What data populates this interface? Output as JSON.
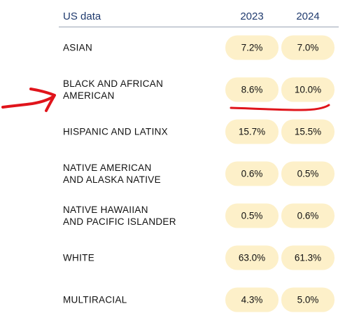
{
  "header": {
    "title": "US data",
    "year1": "2023",
    "year2": "2024"
  },
  "rows": [
    {
      "label_line1": "ASIAN",
      "label_line2": "",
      "v2023": "7.2%",
      "v2024": "7.0%"
    },
    {
      "label_line1": "BLACK AND AFRICAN",
      "label_line2": "AMERICAN",
      "v2023": "8.6%",
      "v2024": "10.0%"
    },
    {
      "label_line1": "HISPANIC AND LATINX",
      "label_line2": "",
      "v2023": "15.7%",
      "v2024": "15.5%"
    },
    {
      "label_line1": "NATIVE AMERICAN",
      "label_line2": "AND ALASKA NATIVE",
      "v2023": "0.6%",
      "v2024": "0.5%"
    },
    {
      "label_line1": "NATIVE HAWAIIAN",
      "label_line2": "AND PACIFIC ISLANDER",
      "v2023": "0.5%",
      "v2024": "0.6%"
    },
    {
      "label_line1": "WHITE",
      "label_line2": "",
      "v2023": "63.0%",
      "v2024": "61.3%"
    },
    {
      "label_line1": "MULTIRACIAL",
      "label_line2": "",
      "v2023": "4.3%",
      "v2024": "5.0%"
    }
  ],
  "colors": {
    "header_text": "#1f3a6e",
    "pill_bg": "#fdf0c9",
    "annotation_red": "#e0141b"
  },
  "annotation": {
    "arrow_icon": "hand-drawn-red-arrow-icon",
    "underline_icon": "hand-drawn-red-underline-icon"
  }
}
